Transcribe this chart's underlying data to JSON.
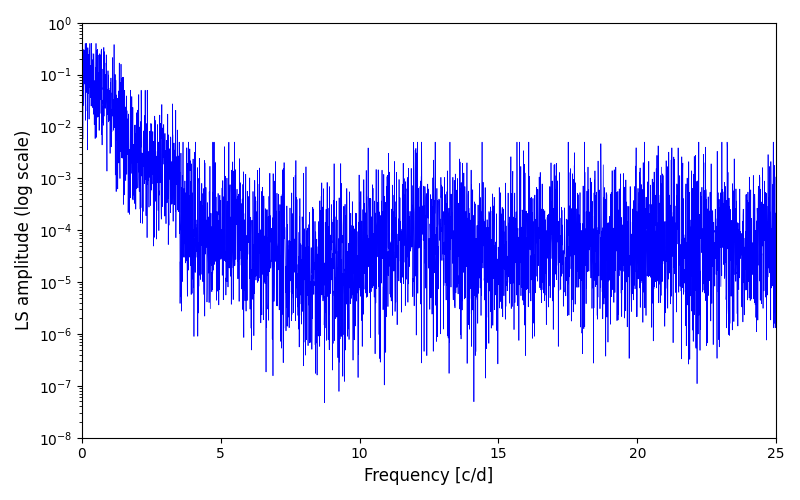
{
  "line_color": "#0000ff",
  "xlabel": "Frequency [c/d]",
  "ylabel": "LS amplitude (log scale)",
  "xlim": [
    0,
    25
  ],
  "ylim": [
    1e-08,
    1.0
  ],
  "xfreq_max": 25.0,
  "n_points": 4000,
  "seed": 42,
  "line_width": 0.5,
  "background_color": "#ffffff"
}
